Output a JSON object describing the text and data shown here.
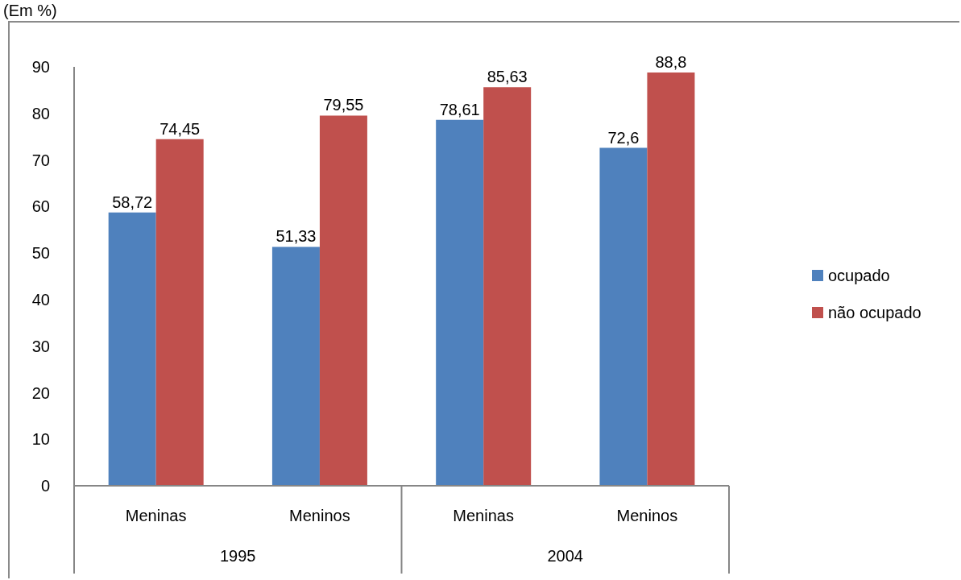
{
  "chart_data": {
    "type": "bar",
    "ylabel": "(Em %)",
    "categories": [
      "Meninas",
      "Meninos",
      "Meninas",
      "Meninos"
    ],
    "annotations": [
      "1995",
      "2004"
    ],
    "series": [
      {
        "name": "ocupado",
        "color": "#4f81bd",
        "values": [
          58.72,
          51.33,
          78.61,
          72.6
        ],
        "value_labels": [
          "58,72",
          "51,33",
          "78,61",
          "72,6"
        ]
      },
      {
        "name": "não ocupado",
        "color": "#c0504d",
        "values": [
          74.45,
          79.55,
          85.63,
          88.8
        ],
        "value_labels": [
          "74,45",
          "79,55",
          "85,63",
          "88,8"
        ]
      }
    ],
    "ylim": [
      0,
      90
    ],
    "yticks": [
      0,
      10,
      20,
      30,
      40,
      50,
      60,
      70,
      80,
      90
    ],
    "legend": "right"
  }
}
